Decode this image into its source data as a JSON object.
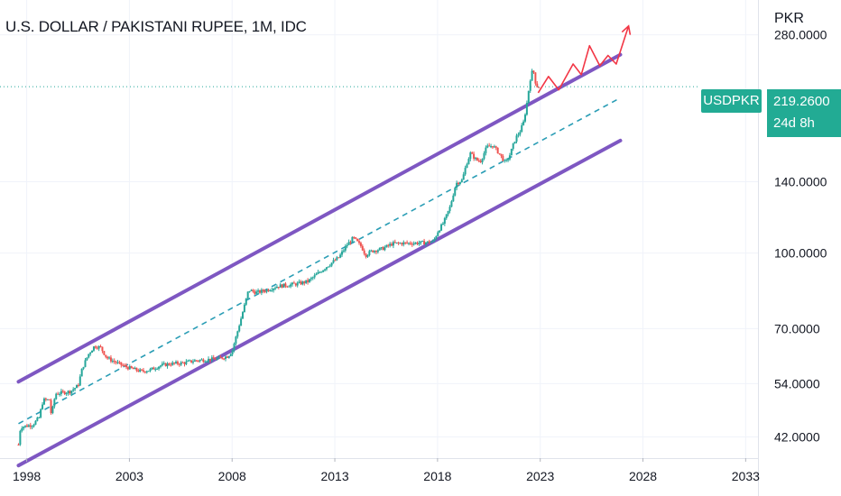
{
  "header": {
    "title": "U.S. DOLLAR / PAKISTANI RUPEE, 1M, IDC",
    "currency_unit": "PKR"
  },
  "price_badge": {
    "symbol": "USDPKR",
    "price": "219.2600",
    "countdown": "24d 8h",
    "color": "#22ab94"
  },
  "colors": {
    "channel": "#7e57c2",
    "midline": "#2a9db5",
    "projection": "#f23645",
    "candle_up": "#26a69a",
    "candle_down": "#ef5350",
    "price_line": "#26a69a"
  },
  "chart_data": {
    "type": "candlestick",
    "y_scale": "log",
    "ylim": [
      38,
      330
    ],
    "xlim": [
      1996.7,
      2033.6
    ],
    "y_ticks": [
      "280.0000",
      "140.0000",
      "100.0000",
      "70.0000",
      "54.0000",
      "42.0000"
    ],
    "y_tick_values": [
      280,
      140,
      100,
      70,
      54,
      42
    ],
    "x_ticks": [
      "1998",
      "2003",
      "2008",
      "2013",
      "2018",
      "2023",
      "2028",
      "2033"
    ],
    "x_tick_values": [
      1998,
      2003,
      2008,
      2013,
      2018,
      2023,
      2028,
      2033
    ],
    "last_price": 219.26,
    "price_path": [
      [
        1997.6,
        40.5
      ],
      [
        1997.7,
        44
      ],
      [
        1998.3,
        44.5
      ],
      [
        1998.6,
        46
      ],
      [
        1998.8,
        50
      ],
      [
        1999.1,
        50
      ],
      [
        1999.2,
        46.5
      ],
      [
        1999.4,
        51.5
      ],
      [
        1999.8,
        51.8
      ],
      [
        2000.1,
        52
      ],
      [
        2000.5,
        53.5
      ],
      [
        2000.7,
        58
      ],
      [
        2001.0,
        62
      ],
      [
        2001.3,
        64.5
      ],
      [
        2001.6,
        64
      ],
      [
        2001.9,
        61
      ],
      [
        2002.3,
        59.8
      ],
      [
        2002.8,
        58.5
      ],
      [
        2003.2,
        57.8
      ],
      [
        2003.6,
        57.2
      ],
      [
        2004.0,
        57.6
      ],
      [
        2004.5,
        58.8
      ],
      [
        2005.0,
        59.3
      ],
      [
        2005.6,
        59.5
      ],
      [
        2006.2,
        60.2
      ],
      [
        2006.8,
        60.5
      ],
      [
        2007.3,
        60.7
      ],
      [
        2007.8,
        61.5
      ],
      [
        2008.0,
        63
      ],
      [
        2008.3,
        70
      ],
      [
        2008.6,
        78
      ],
      [
        2008.8,
        84
      ],
      [
        2009.2,
        83
      ],
      [
        2009.7,
        84
      ],
      [
        2010.2,
        85.5
      ],
      [
        2010.7,
        86
      ],
      [
        2011.2,
        86.5
      ],
      [
        2011.7,
        87.5
      ],
      [
        2012.2,
        91
      ],
      [
        2012.7,
        94.5
      ],
      [
        2013.2,
        98
      ],
      [
        2013.6,
        104
      ],
      [
        2013.9,
        107.5
      ],
      [
        2014.3,
        103
      ],
      [
        2014.5,
        99
      ],
      [
        2014.8,
        101
      ],
      [
        2015.3,
        102
      ],
      [
        2015.8,
        104.5
      ],
      [
        2016.3,
        104.8
      ],
      [
        2016.8,
        104.8
      ],
      [
        2017.3,
        105
      ],
      [
        2017.8,
        105.5
      ],
      [
        2018.0,
        110.5
      ],
      [
        2018.3,
        115.5
      ],
      [
        2018.6,
        124
      ],
      [
        2018.9,
        139
      ],
      [
        2019.2,
        141
      ],
      [
        2019.4,
        152
      ],
      [
        2019.6,
        160
      ],
      [
        2019.9,
        155
      ],
      [
        2020.1,
        154.5
      ],
      [
        2020.4,
        165
      ],
      [
        2020.7,
        166
      ],
      [
        2021.0,
        160
      ],
      [
        2021.3,
        153
      ],
      [
        2021.5,
        158
      ],
      [
        2021.8,
        172
      ],
      [
        2022.0,
        177
      ],
      [
        2022.2,
        186
      ],
      [
        2022.35,
        203
      ],
      [
        2022.5,
        226
      ],
      [
        2022.65,
        239
      ],
      [
        2022.8,
        220
      ],
      [
        2022.95,
        219.26
      ]
    ],
    "channel_upper": [
      [
        1997.6,
        54.5
      ],
      [
        2026.9,
        255
      ]
    ],
    "channel_lower": [
      [
        1997.6,
        36.7
      ],
      [
        2026.9,
        170
      ]
    ],
    "channel_mid": [
      [
        1997.6,
        44.7
      ],
      [
        2026.9,
        208
      ]
    ],
    "projection_path": [
      [
        2022.9,
        213
      ],
      [
        2023.4,
        230
      ],
      [
        2023.9,
        216
      ],
      [
        2024.6,
        244
      ],
      [
        2025.0,
        232
      ],
      [
        2025.4,
        266
      ],
      [
        2025.9,
        242
      ],
      [
        2026.3,
        254
      ],
      [
        2026.7,
        244
      ],
      [
        2027.3,
        292
      ]
    ]
  }
}
